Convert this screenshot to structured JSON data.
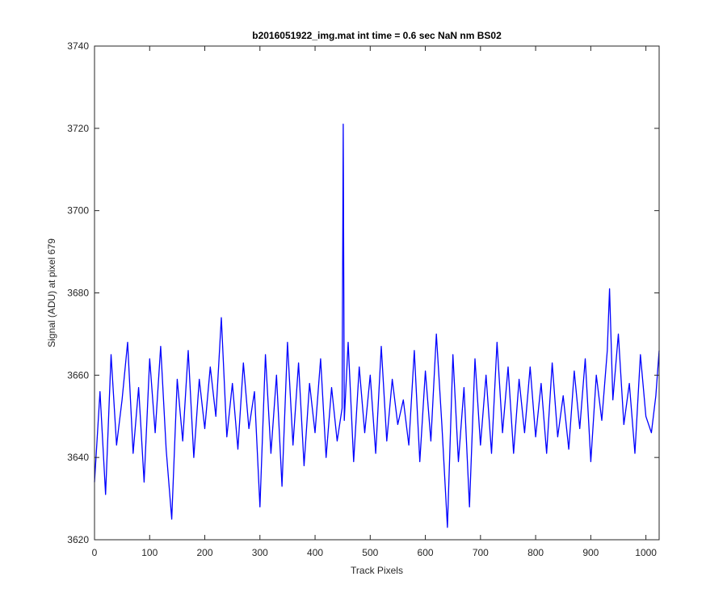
{
  "chart_data": {
    "type": "line",
    "title": "b2016051922_img.mat int time = 0.6 sec  NaN nm BS02",
    "xlabel": "Track Pixels",
    "ylabel": "Signal (ADU) at pixel 679",
    "xlim": [
      0,
      1024
    ],
    "ylim": [
      3620,
      3740
    ],
    "xticks": [
      0,
      100,
      200,
      300,
      400,
      500,
      600,
      700,
      800,
      900,
      1000
    ],
    "yticks": [
      3620,
      3640,
      3660,
      3680,
      3700,
      3720,
      3740
    ],
    "grid": false,
    "series": [
      {
        "color": "#0000ff",
        "x": [
          0,
          10,
          20,
          30,
          40,
          50,
          60,
          70,
          80,
          90,
          100,
          110,
          120,
          130,
          140,
          150,
          160,
          170,
          180,
          190,
          200,
          210,
          220,
          230,
          240,
          250,
          260,
          270,
          280,
          290,
          300,
          310,
          320,
          330,
          340,
          350,
          360,
          370,
          380,
          390,
          400,
          410,
          420,
          430,
          440,
          449,
          451,
          453,
          460,
          470,
          480,
          490,
          500,
          510,
          520,
          530,
          540,
          550,
          560,
          570,
          580,
          590,
          600,
          610,
          620,
          630,
          640,
          650,
          660,
          670,
          680,
          690,
          700,
          710,
          720,
          730,
          740,
          750,
          760,
          770,
          780,
          790,
          800,
          810,
          820,
          830,
          840,
          850,
          860,
          870,
          880,
          890,
          900,
          910,
          920,
          930,
          934,
          940,
          950,
          960,
          970,
          980,
          990,
          1000,
          1010,
          1018,
          1024
        ],
        "y": [
          3634,
          3656,
          3631,
          3665,
          3643,
          3654,
          3668,
          3641,
          3657,
          3634,
          3664,
          3646,
          3667,
          3642,
          3625,
          3659,
          3644,
          3666,
          3640,
          3659,
          3647,
          3662,
          3650,
          3674,
          3645,
          3658,
          3642,
          3663,
          3647,
          3656,
          3628,
          3665,
          3641,
          3660,
          3633,
          3668,
          3643,
          3663,
          3638,
          3658,
          3646,
          3664,
          3640,
          3657,
          3644,
          3652,
          3721,
          3649,
          3668,
          3639,
          3662,
          3646,
          3660,
          3641,
          3667,
          3644,
          3659,
          3648,
          3654,
          3643,
          3666,
          3639,
          3661,
          3644,
          3670,
          3648,
          3623,
          3665,
          3639,
          3657,
          3628,
          3664,
          3643,
          3660,
          3641,
          3668,
          3646,
          3662,
          3641,
          3659,
          3646,
          3662,
          3645,
          3658,
          3641,
          3663,
          3645,
          3655,
          3642,
          3661,
          3647,
          3664,
          3639,
          3660,
          3649,
          3666,
          3681,
          3654,
          3670,
          3648,
          3658,
          3641,
          3665,
          3650,
          3646,
          3655,
          3666
        ]
      }
    ]
  }
}
